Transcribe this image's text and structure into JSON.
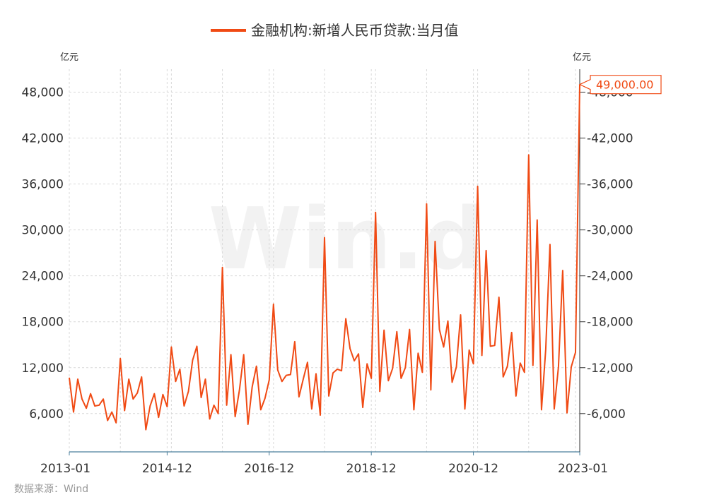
{
  "chart_data": {
    "type": "line",
    "title": "",
    "series": [
      {
        "name": "金融机构:新增人民币贷款:当月值",
        "color": "#f04a14",
        "values": [
          10700,
          6200,
          10500,
          7900,
          6700,
          8600,
          7000,
          7100,
          7900,
          5100,
          6200,
          4800,
          13200,
          6400,
          10500,
          7900,
          8700,
          10800,
          3900,
          7000,
          8600,
          5500,
          8500,
          6900,
          14700,
          10200,
          11800,
          7000,
          8900,
          13000,
          14800,
          8100,
          10500,
          5300,
          7100,
          6000,
          25100,
          7100,
          13700,
          5600,
          9100,
          13700,
          4600,
          9500,
          12200,
          6500,
          8000,
          10400,
          20300,
          11700,
          10200,
          11000,
          11100,
          15400,
          8200,
          10500,
          12700,
          6600,
          11200,
          5800,
          29000,
          8300,
          11300,
          11800,
          11600,
          18400,
          14500,
          12900,
          13800,
          6800,
          12500,
          10600,
          32300,
          8900,
          16900,
          10300,
          11900,
          16700,
          10600,
          12000,
          17000,
          6500,
          13900,
          11400,
          33400,
          9100,
          28500,
          17000,
          14700,
          18100,
          10100,
          12100,
          18900,
          6600,
          14300,
          12500,
          35700,
          13600,
          27300,
          14800,
          14900,
          21200,
          10800,
          12200,
          16600,
          8300,
          12600,
          11400,
          39800,
          12300,
          31300,
          6500,
          14400,
          28100,
          6600,
          12100,
          24700,
          6100,
          12100,
          14000,
          49000
        ]
      }
    ],
    "x_start": "2013-01",
    "x_end": "2023-01",
    "x_tick_labels": [
      "2013-01",
      "2014-12",
      "2016-12",
      "2018-12",
      "2020-12",
      "2023-01"
    ],
    "ylim": [
      1000,
      51000
    ],
    "y_ticks": [
      6000,
      12000,
      18000,
      24000,
      30000,
      36000,
      42000,
      48000
    ],
    "y_tick_labels": [
      "6,000",
      "12,000",
      "18,000",
      "24,000",
      "30,000",
      "36,000",
      "42,000",
      "48,000"
    ],
    "y_unit_left": "亿元",
    "y_unit_right": "亿元",
    "last_value_label": "49,000.00",
    "grid": true,
    "legend_position": "top"
  },
  "source_label": "数据来源：Wind",
  "watermark": "Win.d"
}
